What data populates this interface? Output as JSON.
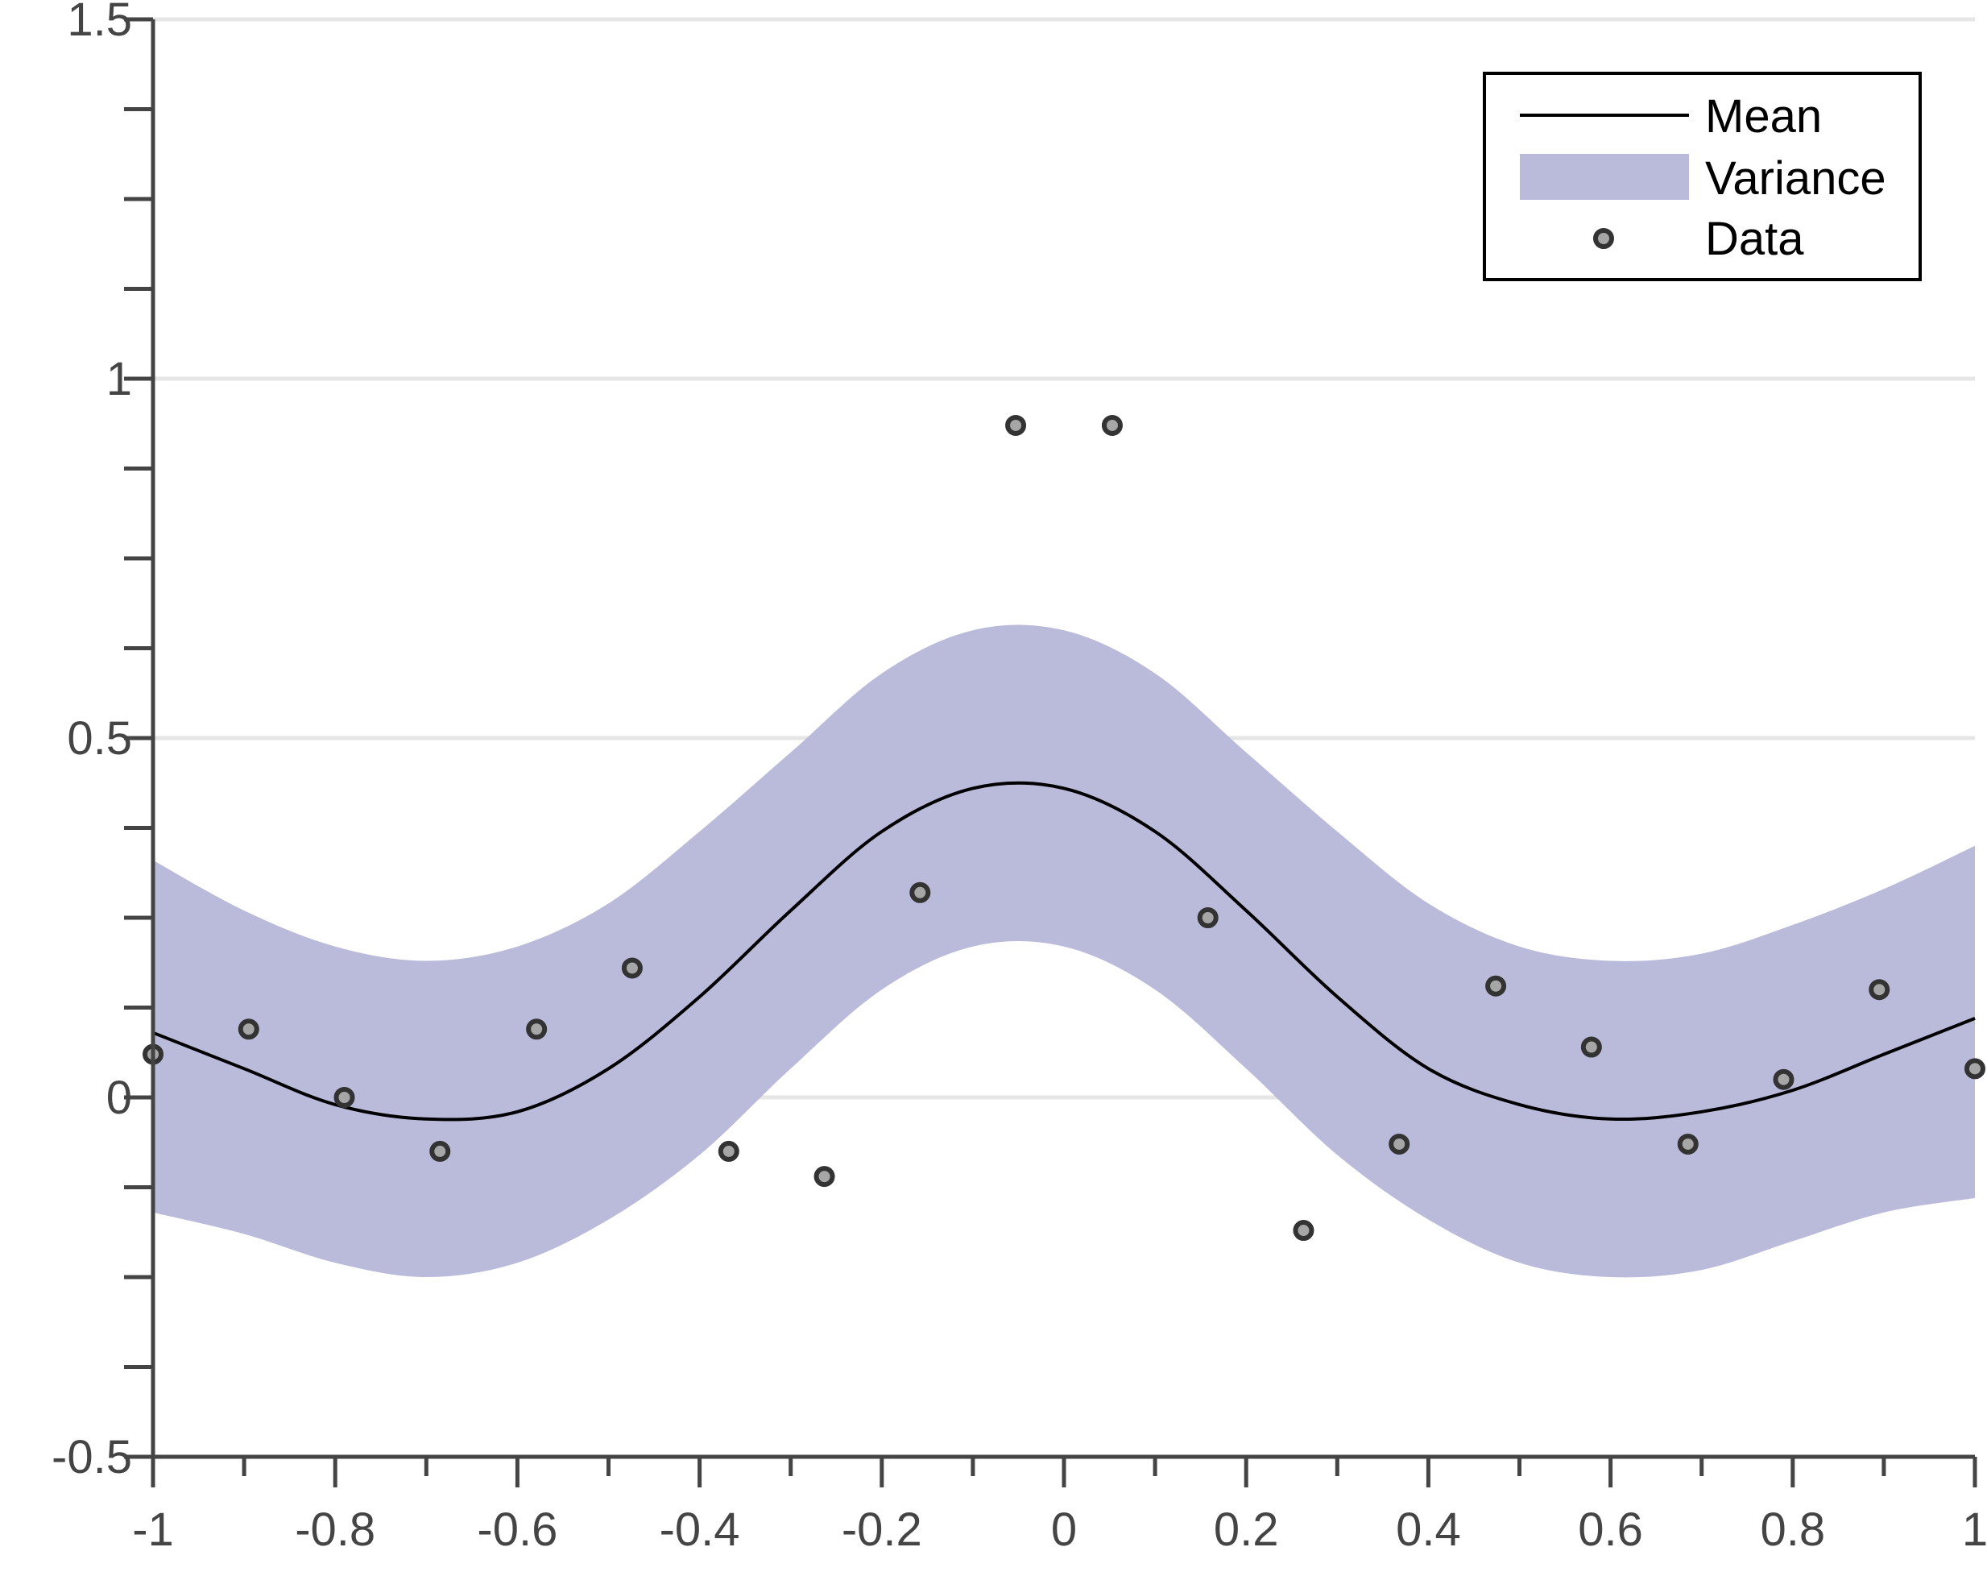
{
  "chart_data": {
    "type": "line",
    "title": "",
    "xlabel": "",
    "ylabel": "",
    "xlim": [
      -1,
      1
    ],
    "ylim": [
      -0.5,
      1.5
    ],
    "grid": "horizontal",
    "legend_placement": "top-right",
    "x_ticks": [
      -1,
      -0.8,
      -0.6,
      -0.4,
      -0.2,
      0,
      0.2,
      0.4,
      0.6,
      0.8,
      1
    ],
    "x_tick_labels": [
      "-1",
      "-0.8",
      "-0.6",
      "-0.4",
      "-0.2",
      "0",
      "0.2",
      "0.4",
      "0.6",
      "0.8",
      "1"
    ],
    "y_ticks": [
      -0.5,
      0,
      0.5,
      1,
      1.5
    ],
    "y_tick_labels": [
      "-0.5",
      "0",
      "0.5",
      "1",
      "1.5"
    ],
    "legend": [
      "Mean",
      "Variance",
      "Data"
    ],
    "colors": {
      "mean": "#000000",
      "variance": "#babadb",
      "data_fill": "#a6a6a6",
      "data_edge": "#333333",
      "axis": "#444444",
      "grid": "#e6e6e6"
    },
    "series": [
      {
        "name": "Mean",
        "kind": "line",
        "x": [
          -1,
          -0.9,
          -0.8,
          -0.7,
          -0.6,
          -0.5,
          -0.4,
          -0.3,
          -0.2,
          -0.1,
          0,
          0.1,
          0.2,
          0.3,
          0.4,
          0.5,
          0.6,
          0.7,
          0.8,
          0.9,
          1
        ],
        "y": [
          0.09,
          0.04,
          -0.01,
          -0.03,
          -0.02,
          0.04,
          0.14,
          0.26,
          0.37,
          0.43,
          0.43,
          0.37,
          0.26,
          0.14,
          0.04,
          -0.01,
          -0.03,
          -0.02,
          0.01,
          0.06,
          0.11
        ]
      },
      {
        "name": "Variance",
        "kind": "band",
        "x": [
          -1,
          -0.9,
          -0.8,
          -0.7,
          -0.6,
          -0.5,
          -0.4,
          -0.3,
          -0.2,
          -0.1,
          0,
          0.1,
          0.2,
          0.3,
          0.4,
          0.5,
          0.6,
          0.7,
          0.8,
          0.9,
          1
        ],
        "upper": [
          0.33,
          0.26,
          0.21,
          0.19,
          0.21,
          0.27,
          0.37,
          0.48,
          0.59,
          0.65,
          0.65,
          0.59,
          0.48,
          0.37,
          0.27,
          0.21,
          0.19,
          0.2,
          0.24,
          0.29,
          0.35
        ],
        "lower": [
          -0.16,
          -0.19,
          -0.23,
          -0.25,
          -0.23,
          -0.17,
          -0.08,
          0.04,
          0.15,
          0.21,
          0.21,
          0.15,
          0.04,
          -0.08,
          -0.17,
          -0.23,
          -0.25,
          -0.24,
          -0.2,
          -0.16,
          -0.14
        ]
      },
      {
        "name": "Data",
        "kind": "scatter",
        "x": [
          -1,
          -0.895,
          -0.79,
          -0.685,
          -0.579,
          -0.474,
          -0.368,
          -0.263,
          -0.158,
          -0.053,
          0.053,
          0.158,
          0.263,
          0.368,
          0.474,
          0.579,
          0.685,
          0.79,
          0.895,
          1
        ],
        "y": [
          0.06,
          0.095,
          0.0,
          -0.075,
          0.095,
          0.18,
          -0.075,
          -0.11,
          0.285,
          0.935,
          0.935,
          0.25,
          -0.185,
          -0.065,
          0.155,
          0.07,
          -0.065,
          0.025,
          0.15,
          0.04
        ]
      }
    ]
  }
}
